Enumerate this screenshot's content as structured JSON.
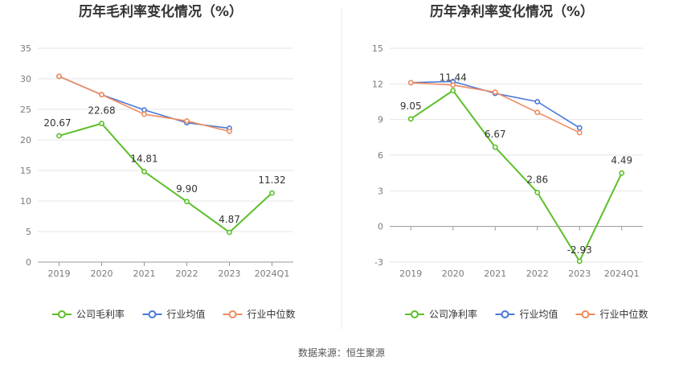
{
  "source_label": "数据来源：恒生聚源",
  "colors": {
    "company": "#5cbf2a",
    "industry_avg": "#4a78d8",
    "industry_median": "#f08a5d",
    "grid": "#e6e6e6",
    "axis": "#999999"
  },
  "chart_data": [
    {
      "type": "line",
      "title": "历年毛利率变化情况（%）",
      "categories": [
        "2019",
        "2020",
        "2021",
        "2022",
        "2023",
        "2024Q1"
      ],
      "ylim": [
        0,
        35
      ],
      "yticks": [
        0,
        5,
        10,
        15,
        20,
        25,
        30,
        35
      ],
      "grid": true,
      "legend_position": "bottom",
      "series": [
        {
          "name": "公司毛利率",
          "values": [
            20.67,
            22.68,
            14.81,
            9.9,
            4.87,
            11.32
          ],
          "labels": [
            "20.67",
            "22.68",
            "14.81",
            "9.90",
            "4.87",
            "11.32"
          ]
        },
        {
          "name": "行业均值",
          "values": [
            30.4,
            27.4,
            24.9,
            22.8,
            21.9,
            null
          ]
        },
        {
          "name": "行业中位数",
          "values": [
            30.4,
            27.4,
            24.2,
            23.1,
            21.4,
            null
          ]
        }
      ]
    },
    {
      "type": "line",
      "title": "历年净利率变化情况（%）",
      "categories": [
        "2019",
        "2020",
        "2021",
        "2022",
        "2023",
        "2024Q1"
      ],
      "ylim": [
        -3,
        15
      ],
      "yticks": [
        -3,
        0,
        3,
        6,
        9,
        12,
        15
      ],
      "grid": true,
      "legend_position": "bottom",
      "series": [
        {
          "name": "公司净利率",
          "values": [
            9.05,
            11.44,
            6.67,
            2.86,
            -2.93,
            4.49
          ],
          "labels": [
            "9.05",
            "11.44",
            "6.67",
            "2.86",
            "-2.93",
            "4.49"
          ]
        },
        {
          "name": "行业均值",
          "values": [
            12.1,
            12.2,
            11.2,
            10.5,
            8.3,
            null
          ]
        },
        {
          "name": "行业中位数",
          "values": [
            12.1,
            11.9,
            11.3,
            9.6,
            7.9,
            null
          ]
        }
      ]
    }
  ]
}
